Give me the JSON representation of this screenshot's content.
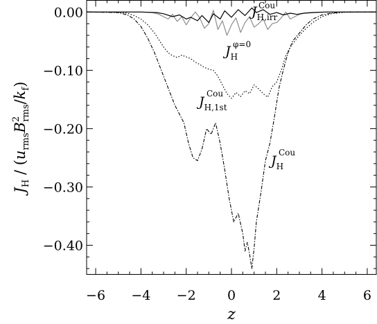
{
  "chart_data": {
    "type": "line",
    "xlabel": "z",
    "ylabel": "J_H / (u_rms B_rms^2 / k_f)",
    "xlim": [
      -6.4,
      6.4
    ],
    "ylim": [
      -0.45,
      0.02
    ],
    "x_ticks": [
      -6,
      -4,
      -2,
      0,
      2,
      4,
      6
    ],
    "x_tick_labels": [
      "−6",
      "−4",
      "−2",
      "0",
      "2",
      "4",
      "6"
    ],
    "y_ticks": [
      0.0,
      -0.1,
      -0.2,
      -0.3,
      -0.4
    ],
    "y_tick_labels": [
      "0.00",
      "−0.10",
      "−0.20",
      "−0.30",
      "−0.40"
    ],
    "grid": false,
    "legend": "none",
    "series": [
      {
        "name": "J_H,irr^Cou",
        "style": "solid",
        "color": "#000000",
        "x": [
          -6.4,
          -4,
          -3.3,
          -3.0,
          -2.6,
          -2.3,
          -2.0,
          -1.8,
          -1.5,
          -1.3,
          -1.0,
          -0.8,
          -0.5,
          -0.3,
          0.0,
          0.3,
          0.6,
          0.9,
          1.1,
          1.4,
          1.7,
          2.0,
          2.3,
          2.6,
          2.9,
          3.2,
          3.6,
          4.2,
          6.4
        ],
        "y": [
          0.0,
          0.0,
          -0.001,
          -0.003,
          -0.008,
          -0.005,
          -0.012,
          -0.009,
          -0.015,
          -0.006,
          -0.018,
          -0.003,
          -0.012,
          0.002,
          -0.009,
          0.004,
          -0.006,
          0.007,
          -0.001,
          0.004,
          -0.004,
          -0.001,
          -0.005,
          -0.002,
          -0.004,
          -0.002,
          -0.001,
          0.0,
          0.0
        ]
      },
      {
        "name": "J_H^(phi=0)",
        "style": "solid",
        "color": "#8c8c8c",
        "x": [
          -6.4,
          -4,
          -3.5,
          -3.2,
          -3.0,
          -2.8,
          -2.6,
          -2.4,
          -2.2,
          -2.0,
          -1.8,
          -1.6,
          -1.4,
          -1.2,
          -1.0,
          -0.8,
          -0.6,
          -0.4,
          -0.2,
          0.0,
          0.2,
          0.4,
          0.6,
          0.8,
          1.0,
          1.2,
          1.4,
          1.6,
          1.8,
          2.0,
          2.2,
          2.4,
          2.6,
          2.8,
          3.0,
          3.2,
          3.5,
          4,
          6.4
        ],
        "y": [
          0.0,
          0.0,
          -0.001,
          -0.004,
          -0.008,
          -0.012,
          -0.004,
          -0.016,
          -0.008,
          -0.022,
          -0.01,
          0.0,
          -0.01,
          -0.028,
          -0.02,
          0.003,
          -0.03,
          -0.015,
          -0.04,
          -0.022,
          -0.01,
          -0.035,
          -0.018,
          -0.008,
          -0.026,
          -0.02,
          -0.012,
          -0.03,
          -0.02,
          -0.018,
          -0.01,
          0.0,
          -0.012,
          -0.008,
          -0.004,
          -0.002,
          -0.001,
          0.0,
          0.0
        ]
      },
      {
        "name": "J_H,1st^Cou",
        "style": "dotted",
        "color": "#000000",
        "x": [
          -6.4,
          -5.0,
          -4.6,
          -4.3,
          -4.0,
          -3.7,
          -3.4,
          -3.2,
          -3.0,
          -2.8,
          -2.6,
          -2.4,
          -2.2,
          -2.0,
          -1.8,
          -1.6,
          -1.4,
          -1.2,
          -1.0,
          -0.8,
          -0.6,
          -0.4,
          -0.2,
          0.0,
          0.2,
          0.4,
          0.6,
          0.8,
          1.0,
          1.2,
          1.4,
          1.6,
          1.8,
          2.0,
          2.2,
          2.4,
          2.6,
          2.8,
          3.0,
          3.3,
          3.6,
          4.0,
          4.4,
          5.0,
          6.4
        ],
        "y": [
          0.0,
          -0.0005,
          -0.002,
          -0.006,
          -0.012,
          -0.022,
          -0.036,
          -0.048,
          -0.06,
          -0.07,
          -0.075,
          -0.078,
          -0.074,
          -0.077,
          -0.08,
          -0.086,
          -0.09,
          -0.095,
          -0.098,
          -0.1,
          -0.11,
          -0.125,
          -0.14,
          -0.148,
          -0.138,
          -0.145,
          -0.135,
          -0.14,
          -0.125,
          -0.132,
          -0.14,
          -0.146,
          -0.128,
          -0.12,
          -0.1,
          -0.075,
          -0.06,
          -0.05,
          -0.04,
          -0.028,
          -0.018,
          -0.008,
          -0.003,
          -0.0005,
          0.0
        ]
      },
      {
        "name": "J_H^Cou",
        "style": "dash-dot",
        "color": "#000000",
        "x": [
          -6.4,
          -5.0,
          -4.6,
          -4.3,
          -4.0,
          -3.7,
          -3.4,
          -3.1,
          -2.9,
          -2.7,
          -2.5,
          -2.3,
          -2.1,
          -1.9,
          -1.7,
          -1.5,
          -1.3,
          -1.1,
          -0.9,
          -0.7,
          -0.5,
          -0.3,
          -0.1,
          0.1,
          0.3,
          0.5,
          0.6,
          0.7,
          0.8,
          0.9,
          1.0,
          1.1,
          1.3,
          1.5,
          1.7,
          1.9,
          2.1,
          2.3,
          2.5,
          2.7,
          3.0,
          3.3,
          3.6,
          4.0,
          4.4,
          5.0,
          6.4
        ],
        "y": [
          0.0,
          -0.001,
          -0.005,
          -0.012,
          -0.025,
          -0.045,
          -0.07,
          -0.1,
          -0.12,
          -0.14,
          -0.16,
          -0.175,
          -0.19,
          -0.225,
          -0.25,
          -0.255,
          -0.235,
          -0.2,
          -0.21,
          -0.19,
          -0.225,
          -0.27,
          -0.32,
          -0.36,
          -0.345,
          -0.38,
          -0.41,
          -0.395,
          -0.415,
          -0.44,
          -0.405,
          -0.36,
          -0.31,
          -0.255,
          -0.225,
          -0.18,
          -0.13,
          -0.098,
          -0.07,
          -0.05,
          -0.036,
          -0.022,
          -0.012,
          -0.005,
          -0.002,
          0.0,
          0.0
        ]
      }
    ],
    "annotations": [
      {
        "main": "J",
        "sub": "H,irr",
        "sup": "Cou"
      },
      {
        "main": "J",
        "sub": "H",
        "sup": "φ=0"
      },
      {
        "main": "J",
        "sub": "H,1st",
        "sup": "Cou"
      },
      {
        "main": "J",
        "sub": "H",
        "sup": "Cou"
      }
    ],
    "ylabel_parts": {
      "a": "J",
      "a_sub": "H",
      "b": " / (",
      "c": "u",
      "c_sub": "rms",
      "d": "B",
      "d_sup": "2",
      "d_sub": "rms",
      "e": "/",
      "f": "k",
      "f_sub": "f",
      "g": ")"
    }
  }
}
